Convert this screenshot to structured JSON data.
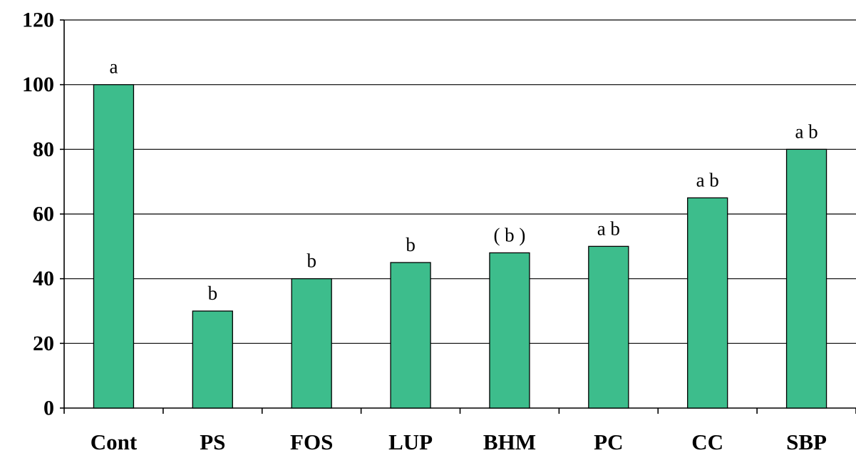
{
  "chart_data": {
    "type": "bar",
    "title": "",
    "xlabel": "",
    "ylabel": "",
    "categories": [
      "Cont",
      "PS",
      "FOS",
      "LUP",
      "BHM",
      "PC",
      "CC",
      "SBP"
    ],
    "values": [
      100,
      30,
      40,
      45,
      48,
      50,
      65,
      80
    ],
    "data_labels": [
      "a",
      "b",
      "b",
      "b",
      "( b )",
      "a b",
      "a b",
      "a b"
    ],
    "ylim": [
      0,
      120
    ],
    "yticks": [
      0,
      20,
      40,
      60,
      80,
      100,
      120
    ],
    "grid": true,
    "legend": "none",
    "bar_color": "#3dbd8c"
  }
}
